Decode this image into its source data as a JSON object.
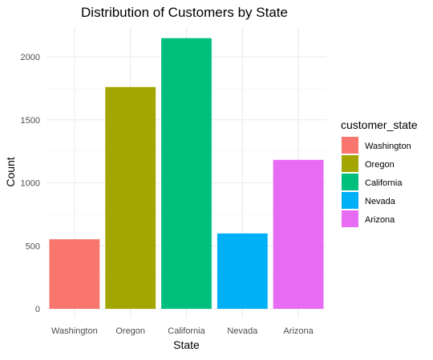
{
  "chart_data": {
    "type": "bar",
    "title": "Distribution of Customers by State",
    "xlabel": "State",
    "ylabel": "Count",
    "categories": [
      "Washington",
      "Oregon",
      "California",
      "Nevada",
      "Arizona"
    ],
    "values": [
      552,
      1760,
      2148,
      598,
      1182
    ],
    "colors": [
      "#F8766D",
      "#A3A500",
      "#00BF7D",
      "#00B0F6",
      "#E76BF3"
    ],
    "ylim": [
      0,
      2150
    ],
    "yticks": [
      0,
      500,
      1000,
      1500,
      2000
    ],
    "grid": true,
    "legend": {
      "title": "customer_state",
      "position": "right",
      "entries": [
        "Washington",
        "Oregon",
        "California",
        "Nevada",
        "Arizona"
      ]
    }
  }
}
